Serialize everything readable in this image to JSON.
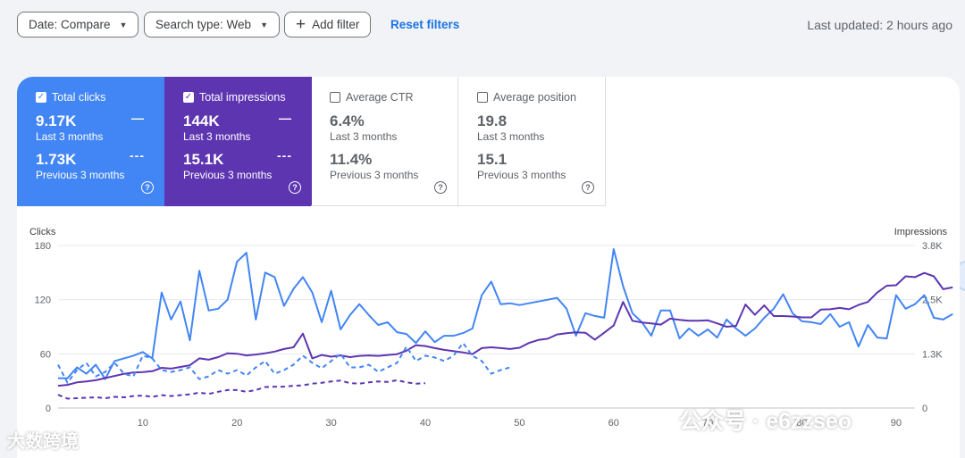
{
  "toolbar": {
    "date_label": "Date: Compare",
    "search_type_label": "Search type: Web",
    "add_filter_label": "Add filter",
    "reset_label": "Reset filters",
    "last_updated": "Last updated: 2 hours ago"
  },
  "metrics": [
    {
      "label": "Total clicks",
      "checked": true,
      "color": "#4285f4",
      "current": "9.17K",
      "current_period": "Last 3 months",
      "previous": "1.73K",
      "previous_period": "Previous 3 months"
    },
    {
      "label": "Total impressions",
      "checked": true,
      "color": "#5e35b1",
      "current": "144K",
      "current_period": "Last 3 months",
      "previous": "15.1K",
      "previous_period": "Previous 3 months"
    },
    {
      "label": "Average CTR",
      "checked": false,
      "current": "6.4%",
      "current_period": "Last 3 months",
      "previous": "11.4%",
      "previous_period": "Previous 3 months"
    },
    {
      "label": "Average position",
      "checked": false,
      "current": "19.8",
      "current_period": "Last 3 months",
      "previous": "15.1",
      "previous_period": "Previous 3 months"
    }
  ],
  "watermarks": {
    "left": "大数跨境",
    "right": "公众号 · e6zzseo"
  },
  "chart_data": {
    "type": "line",
    "left_axis_label": "Clicks",
    "right_axis_label": "Impressions",
    "left_ticks": [
      "0",
      "60",
      "120",
      "180"
    ],
    "right_ticks": [
      "0",
      "1.3K",
      "2.5K",
      "3.8K"
    ],
    "x_ticks": [
      "10",
      "20",
      "30",
      "40",
      "50",
      "60",
      "70",
      "80",
      "90"
    ],
    "ylim_left": [
      0,
      180
    ],
    "ylim_right": [
      0,
      3800
    ],
    "x_range": [
      1,
      92
    ],
    "series": [
      {
        "name": "Clicks",
        "axis": "left",
        "color": "#4285f4",
        "dashed": false,
        "values": [
          33,
          33,
          45,
          38,
          48,
          32,
          52,
          55,
          58,
          62,
          55,
          128,
          98,
          118,
          75,
          152,
          108,
          110,
          120,
          162,
          172,
          98,
          150,
          145,
          113,
          132,
          145,
          128,
          95,
          130,
          87,
          103,
          115,
          103,
          92,
          95,
          84,
          82,
          72,
          85,
          73,
          80,
          80,
          83,
          88,
          125,
          140,
          115,
          116,
          114,
          116,
          118,
          120,
          122,
          110,
          80,
          105,
          102,
          100,
          176,
          135,
          105,
          95,
          80,
          108,
          108,
          77,
          88,
          80,
          87,
          78,
          98,
          88,
          80,
          88,
          100,
          110,
          126,
          105,
          96,
          95,
          93,
          104,
          90,
          95,
          68,
          92,
          78,
          77,
          125,
          110,
          115,
          125,
          100,
          98,
          104
        ]
      },
      {
        "name": "Impressions",
        "axis": "right",
        "color": "#5e35b1",
        "dashed": false,
        "values": [
          520,
          540,
          600,
          620,
          650,
          700,
          750,
          800,
          830,
          840,
          860,
          940,
          920,
          960,
          1000,
          1160,
          1130,
          1190,
          1280,
          1270,
          1230,
          1250,
          1280,
          1320,
          1380,
          1420,
          1740,
          1160,
          1240,
          1200,
          1230,
          1190,
          1220,
          1230,
          1220,
          1240,
          1260,
          1340,
          1470,
          1450,
          1400,
          1360,
          1330,
          1300,
          1260,
          1400,
          1420,
          1400,
          1380,
          1410,
          1520,
          1590,
          1620,
          1720,
          1750,
          1770,
          1760,
          1600,
          1760,
          1930,
          2480,
          2040,
          2000,
          1980,
          1950,
          2090,
          2060,
          2040,
          2040,
          2050,
          1980,
          1900,
          1920,
          2420,
          2180,
          2400,
          2150,
          2150,
          2140,
          2120,
          2120,
          2300,
          2310,
          2340,
          2310,
          2410,
          2480,
          2700,
          2860,
          2870,
          3080,
          3060,
          3160,
          3080,
          2780,
          2820
        ]
      },
      {
        "name": "Clicks (previous)",
        "axis": "left",
        "color": "#4285f4",
        "dashed": true,
        "values": [
          48,
          28,
          42,
          50,
          35,
          40,
          50,
          38,
          35,
          58,
          55,
          42,
          40,
          42,
          45,
          32,
          35,
          42,
          38,
          42,
          36,
          45,
          52,
          38,
          42,
          48,
          58,
          50,
          44,
          52,
          60,
          45,
          45,
          48,
          40,
          45,
          50,
          68,
          52,
          58,
          56,
          52,
          58,
          72,
          58,
          52,
          38,
          42,
          45
        ]
      },
      {
        "name": "Impressions (previous)",
        "axis": "right",
        "color": "#5e35b1",
        "dashed": true,
        "values": [
          310,
          220,
          230,
          240,
          250,
          230,
          260,
          250,
          280,
          290,
          260,
          300,
          280,
          300,
          320,
          360,
          330,
          380,
          420,
          420,
          380,
          420,
          490,
          500,
          500,
          520,
          530,
          570,
          590,
          620,
          640,
          580,
          570,
          600,
          620,
          610,
          650,
          600,
          570,
          580
        ]
      }
    ]
  }
}
